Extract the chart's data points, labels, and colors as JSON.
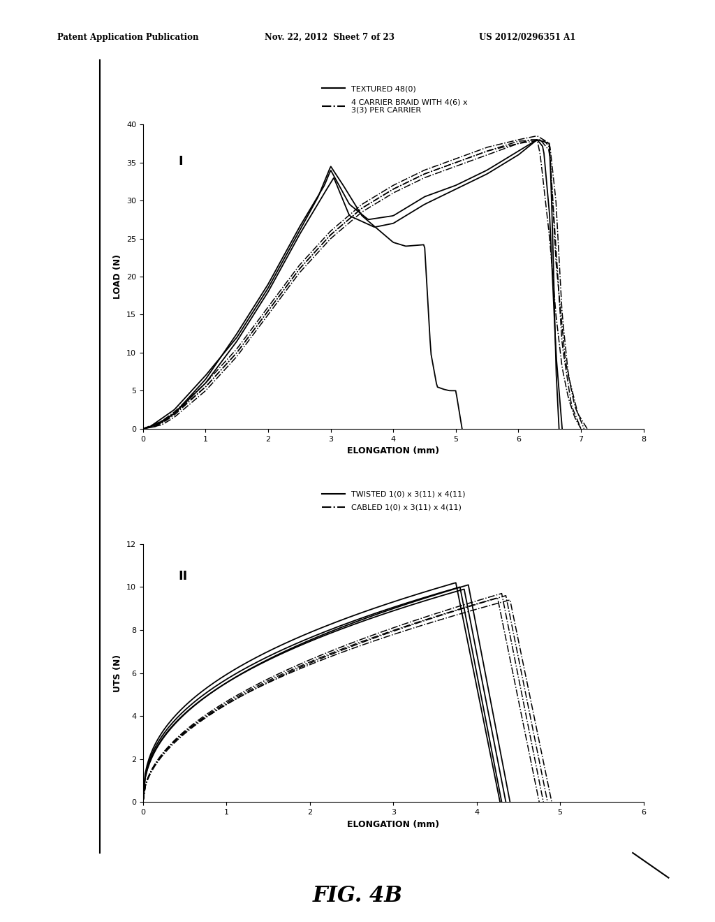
{
  "header_left": "Patent Application Publication",
  "header_mid": "Nov. 22, 2012  Sheet 7 of 23",
  "header_right": "US 2012/0296351 A1",
  "figure_label": "FIG. 4B",
  "panel_I_label": "I",
  "panel_II_label": "II",
  "panel_I": {
    "xlabel": "ELONGATION (mm)",
    "ylabel": "LOAD (N)",
    "xlim": [
      0,
      8
    ],
    "ylim": [
      0,
      40
    ],
    "xticks": [
      0,
      1,
      2,
      3,
      4,
      5,
      6,
      7,
      8
    ],
    "yticks": [
      0,
      5,
      10,
      15,
      20,
      25,
      30,
      35,
      40
    ],
    "legend1_label": "TEXTURED 48(0)",
    "legend2_label": "4 CARRIER BRAID WITH 4(6) x\n3(3) PER CARRIER"
  },
  "panel_II": {
    "xlabel": "ELONGATION (mm)",
    "ylabel": "UTS (N)",
    "xlim": [
      0,
      6
    ],
    "ylim": [
      0,
      12
    ],
    "xticks": [
      0,
      1,
      2,
      3,
      4,
      5,
      6
    ],
    "yticks": [
      0,
      2,
      4,
      6,
      8,
      10,
      12
    ],
    "legend1_label": "TWISTED 1(0) x 3(11) x 4(11)",
    "legend2_label": "CABLED 1(0) x 3(11) x 4(11)"
  },
  "background_color": "#ffffff",
  "line_color": "#000000"
}
